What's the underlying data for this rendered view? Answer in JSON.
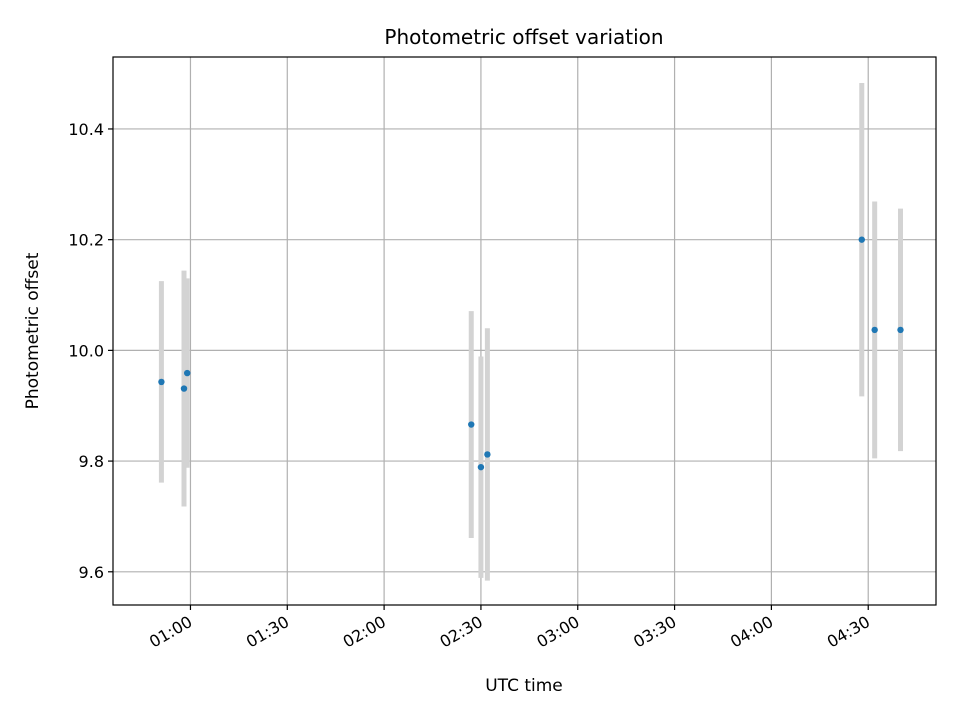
{
  "chart_data": {
    "type": "scatter",
    "title": "Photometric offset variation",
    "xlabel": "UTC time",
    "ylabel": "Photometric offset",
    "x_range": [
      "00:36",
      "04:51"
    ],
    "ylim": [
      9.54,
      10.53
    ],
    "grid": true,
    "x_ticks": [
      "01:00",
      "01:30",
      "02:00",
      "02:30",
      "03:00",
      "03:30",
      "04:00",
      "04:30"
    ],
    "y_ticks": [
      "9.6",
      "9.8",
      "10.0",
      "10.2",
      "10.4"
    ],
    "points": [
      {
        "x": "00:51",
        "y": 9.943,
        "err": 0.182
      },
      {
        "x": "00:58",
        "y": 9.931,
        "err": 0.213
      },
      {
        "x": "00:59",
        "y": 9.959,
        "err": 0.171
      },
      {
        "x": "02:27",
        "y": 9.866,
        "err": 0.205
      },
      {
        "x": "02:30",
        "y": 9.789,
        "err": 0.2
      },
      {
        "x": "02:32",
        "y": 9.812,
        "err": 0.228
      },
      {
        "x": "04:28",
        "y": 10.2,
        "err": 0.283
      },
      {
        "x": "04:32",
        "y": 10.037,
        "err": 0.232
      },
      {
        "x": "04:40",
        "y": 10.037,
        "err": 0.219
      }
    ],
    "colors": {
      "point": "#1f77b4",
      "errorbar": "#d3d3d3",
      "grid": "#b0b0b0",
      "axes": "#000000"
    }
  }
}
